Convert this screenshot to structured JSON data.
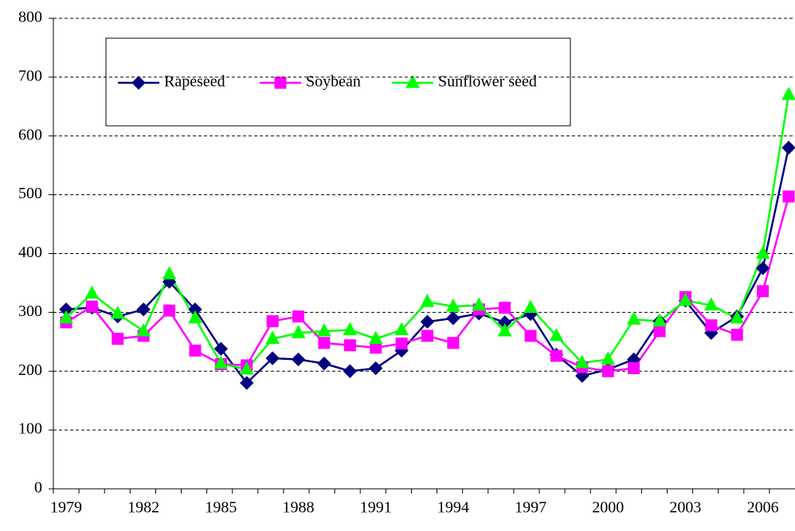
{
  "chart_data": {
    "type": "line",
    "categories": [
      "1979",
      null,
      null,
      "1982",
      null,
      null,
      "1985",
      null,
      null,
      "1988",
      null,
      null,
      "1991",
      null,
      null,
      "1994",
      null,
      null,
      "1997",
      null,
      null,
      "2000",
      null,
      null,
      "2003",
      null,
      null,
      "2006",
      null
    ],
    "series": [
      {
        "name": "Rapeseed",
        "color": "#000080",
        "marker": "diamond",
        "values": [
          305,
          308,
          293,
          305,
          352,
          305,
          238,
          180,
          222,
          220,
          213,
          200,
          205,
          235,
          284,
          290,
          298,
          283,
          297,
          228,
          192,
          203,
          220,
          285,
          320,
          265,
          293,
          375,
          580
        ]
      },
      {
        "name": "Soybean",
        "color": "#ff00ff",
        "marker": "square",
        "values": [
          283,
          310,
          255,
          260,
          303,
          235,
          212,
          210,
          285,
          293,
          248,
          244,
          240,
          247,
          260,
          248,
          305,
          308,
          260,
          226,
          207,
          200,
          205,
          268,
          326,
          278,
          262,
          336,
          497
        ]
      },
      {
        "name": "Sunflower seed",
        "color": "#00ff00",
        "marker": "triangle",
        "values": [
          290,
          332,
          298,
          268,
          365,
          290,
          213,
          203,
          255,
          265,
          268,
          270,
          255,
          270,
          318,
          310,
          312,
          268,
          308,
          260,
          214,
          220,
          288,
          285,
          320,
          312,
          290,
          400,
          670
        ]
      }
    ],
    "ylim": [
      0,
      800
    ],
    "yticks": [
      0,
      100,
      200,
      300,
      400,
      500,
      600,
      700,
      800
    ],
    "grid": true,
    "legend": "top-left"
  }
}
